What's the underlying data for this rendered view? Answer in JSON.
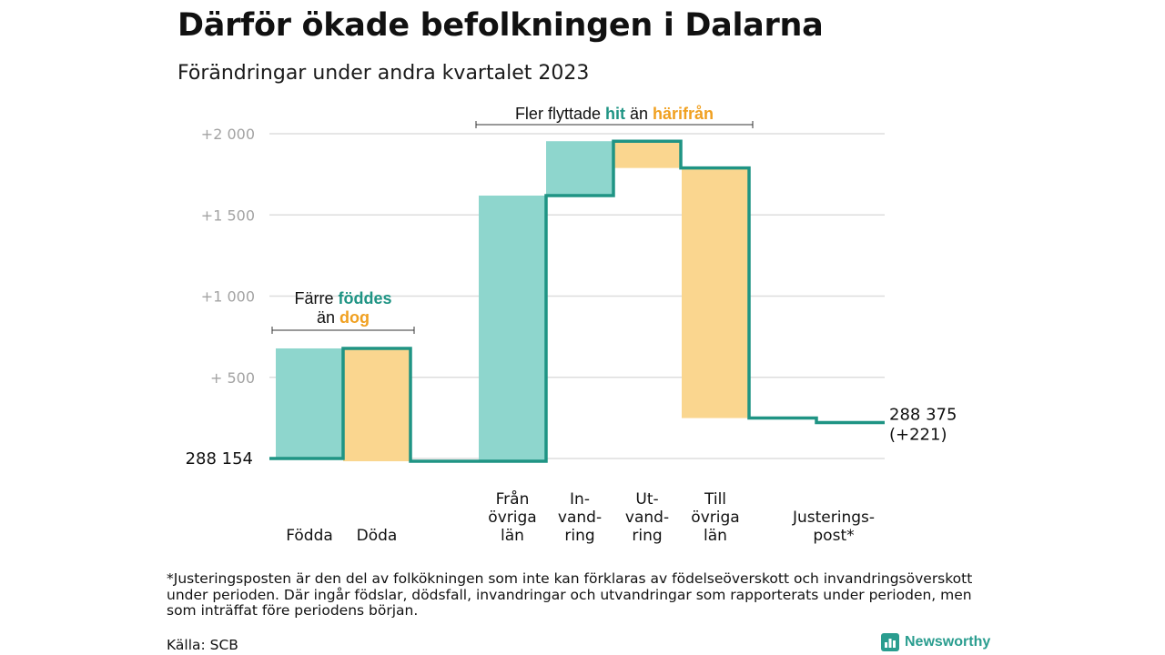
{
  "title": "Därför ökade befolkningen i Dalarna",
  "subtitle": "Förändringar under andra kvartalet 2023",
  "colors": {
    "increase": "#8ed6cd",
    "decrease": "#fad68f",
    "line": "#1f9484",
    "teal_text": "#1f9484",
    "orange_text": "#f0a020"
  },
  "chart_data": {
    "type": "waterfall",
    "start": {
      "label": "288 154",
      "value": 288154
    },
    "end": {
      "label": "288 375",
      "change": "(+221)",
      "value": 288375
    },
    "ylim": [
      -20,
      2100
    ],
    "yticks": [
      {
        "value": 500,
        "label": "+  500"
      },
      {
        "value": 1000,
        "label": "+1  000"
      },
      {
        "value": 1500,
        "label": "+1  500"
      },
      {
        "value": 2000,
        "label": "+2  000"
      }
    ],
    "grid": true,
    "steps": [
      {
        "name": "births",
        "label": [
          "Födda"
        ],
        "delta": 678,
        "kind": "increase"
      },
      {
        "name": "deaths",
        "label": [
          "Döda"
        ],
        "delta": -695,
        "kind": "decrease"
      },
      {
        "name": "from-other-counties",
        "label": [
          "Från",
          "övriga",
          "län"
        ],
        "delta": 1636,
        "kind": "increase"
      },
      {
        "name": "immigration",
        "label": [
          "In-",
          "vand-",
          "ring"
        ],
        "delta": 335,
        "kind": "increase"
      },
      {
        "name": "emigration",
        "label": [
          "Ut-",
          "vand-",
          "ring"
        ],
        "delta": -165,
        "kind": "decrease"
      },
      {
        "name": "to-other-counties",
        "label": [
          "Till",
          "övriga",
          "län"
        ],
        "delta": -1540,
        "kind": "decrease"
      },
      {
        "name": "adjustment",
        "label": [
          "Justerings-",
          "post*"
        ],
        "delta": -28,
        "kind": "decrease"
      }
    ],
    "annotations": [
      {
        "name": "births-deaths",
        "from_step": 0,
        "to_step": 1,
        "lines": [
          [
            {
              "text": "Färre ",
              "style": "normal"
            },
            {
              "text": "föddes",
              "style": "teal"
            }
          ],
          [
            {
              "text": "än ",
              "style": "normal"
            },
            {
              "text": "dog",
              "style": "orange"
            }
          ]
        ]
      },
      {
        "name": "migration",
        "from_step": 2,
        "to_step": 5,
        "lines": [
          [
            {
              "text": "Fler flyttade ",
              "style": "normal"
            },
            {
              "text": "hit",
              "style": "teal"
            },
            {
              "text": " än ",
              "style": "normal"
            },
            {
              "text": "härifrån",
              "style": "orange"
            }
          ]
        ]
      }
    ]
  },
  "footnote": "*Justeringsposten är den del av folkökningen som inte kan förklaras av födelseöverskott och invandringsöverskott under perioden. Där ingår födslar, dödsfall, invandringar och utvandringar som rapporterats under perioden, men som inträffat före periodens början.",
  "source": "Källa: SCB",
  "brand": {
    "name": "Newsworthy",
    "icon": "bar-chart-icon"
  }
}
